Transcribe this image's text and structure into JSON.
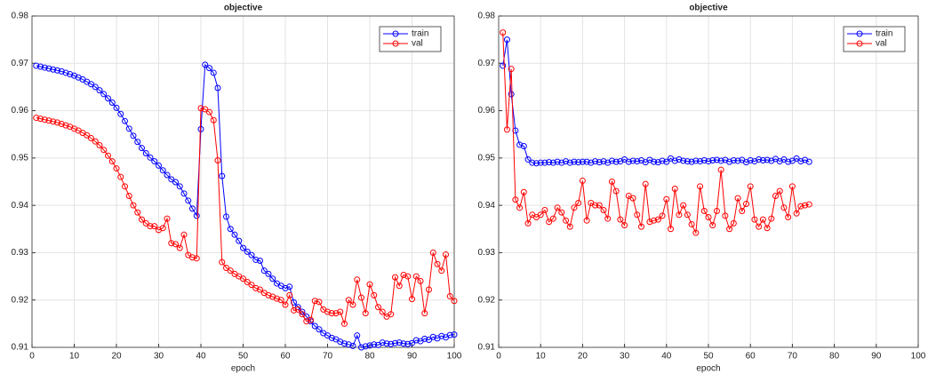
{
  "chart_data": [
    {
      "type": "line",
      "title": "objective",
      "xlabel": "epoch",
      "x": [
        1,
        2,
        3,
        4,
        5,
        6,
        7,
        8,
        9,
        10,
        11,
        12,
        13,
        14,
        15,
        16,
        17,
        18,
        19,
        20,
        21,
        22,
        23,
        24,
        25,
        26,
        27,
        28,
        29,
        30,
        31,
        32,
        33,
        34,
        35,
        36,
        37,
        38,
        39,
        40,
        41,
        42,
        43,
        44,
        45,
        46,
        47,
        48,
        49,
        50,
        51,
        52,
        53,
        54,
        55,
        56,
        57,
        58,
        59,
        60,
        61,
        62,
        63,
        64,
        65,
        66,
        67,
        68,
        69,
        70,
        71,
        72,
        73,
        74,
        75,
        76,
        77,
        78,
        79,
        80,
        81,
        82,
        83,
        84,
        85,
        86,
        87,
        88,
        89,
        90,
        91,
        92,
        93,
        94,
        95,
        96,
        97,
        98,
        99,
        100
      ],
      "series": [
        {
          "name": "train",
          "color": "#0000ff",
          "values": [
            0.9695,
            0.9693,
            0.9691,
            0.9689,
            0.9687,
            0.9685,
            0.9683,
            0.968,
            0.9677,
            0.9674,
            0.967,
            0.9666,
            0.9661,
            0.9656,
            0.965,
            0.9643,
            0.9635,
            0.9626,
            0.9617,
            0.9606,
            0.9593,
            0.9578,
            0.9562,
            0.9547,
            0.9534,
            0.9521,
            0.951,
            0.9501,
            0.9493,
            0.9484,
            0.9474,
            0.9464,
            0.9455,
            0.9449,
            0.944,
            0.9425,
            0.941,
            0.9393,
            0.9378,
            0.9561,
            0.9697,
            0.969,
            0.968,
            0.9648,
            0.9462,
            0.9376,
            0.935,
            0.9338,
            0.9325,
            0.931,
            0.9302,
            0.9295,
            0.9285,
            0.9283,
            0.9262,
            0.9255,
            0.9245,
            0.9235,
            0.923,
            0.9225,
            0.9228,
            0.9195,
            0.9185,
            0.9175,
            0.9165,
            0.9155,
            0.9145,
            0.9138,
            0.913,
            0.9125,
            0.912,
            0.9117,
            0.9112,
            0.9108,
            0.9106,
            0.9103,
            0.9125,
            0.91,
            0.9102,
            0.9104,
            0.9106,
            0.9105,
            0.911,
            0.9108,
            0.9107,
            0.9109,
            0.911,
            0.9108,
            0.9107,
            0.9109,
            0.9115,
            0.9113,
            0.9118,
            0.9116,
            0.9122,
            0.9119,
            0.9124,
            0.9121,
            0.9126,
            0.9127
          ]
        },
        {
          "name": "val",
          "color": "#ff0000",
          "values": [
            0.9585,
            0.9583,
            0.9581,
            0.9579,
            0.9577,
            0.9575,
            0.9572,
            0.9569,
            0.9566,
            0.9562,
            0.9558,
            0.9553,
            0.9548,
            0.9542,
            0.9535,
            0.9527,
            0.9517,
            0.9505,
            0.9493,
            0.9478,
            0.946,
            0.944,
            0.942,
            0.94,
            0.9385,
            0.937,
            0.9362,
            0.9356,
            0.9356,
            0.9348,
            0.9352,
            0.9372,
            0.932,
            0.9318,
            0.931,
            0.9338,
            0.9295,
            0.929,
            0.9288,
            0.9605,
            0.9603,
            0.9597,
            0.958,
            0.9495,
            0.928,
            0.9268,
            0.9262,
            0.9255,
            0.925,
            0.9245,
            0.9238,
            0.9232,
            0.9225,
            0.9222,
            0.9215,
            0.921,
            0.9207,
            0.9203,
            0.92,
            0.919,
            0.921,
            0.9178,
            0.918,
            0.917,
            0.9155,
            0.9158,
            0.9198,
            0.9196,
            0.918,
            0.9175,
            0.9172,
            0.9172,
            0.9175,
            0.915,
            0.92,
            0.919,
            0.9243,
            0.9205,
            0.9172,
            0.9233,
            0.921,
            0.9185,
            0.9175,
            0.9165,
            0.917,
            0.9248,
            0.923,
            0.9253,
            0.925,
            0.9202,
            0.925,
            0.924,
            0.9172,
            0.9222,
            0.93,
            0.9276,
            0.9262,
            0.9296,
            0.9208,
            0.9198
          ]
        }
      ],
      "xlim": [
        0,
        100
      ],
      "xticks": [
        0,
        10,
        20,
        30,
        40,
        50,
        60,
        70,
        80,
        90,
        100
      ],
      "ylim": [
        0.91,
        0.98
      ],
      "yticks": [
        0.91,
        0.92,
        0.93,
        0.94,
        0.95,
        0.96,
        0.97,
        0.98
      ],
      "grid": true,
      "legend": "northeast"
    },
    {
      "type": "line",
      "title": "objective",
      "xlabel": "epoch",
      "x": [
        1,
        2,
        3,
        4,
        5,
        6,
        7,
        8,
        9,
        10,
        11,
        12,
        13,
        14,
        15,
        16,
        17,
        18,
        19,
        20,
        21,
        22,
        23,
        24,
        25,
        26,
        27,
        28,
        29,
        30,
        31,
        32,
        33,
        34,
        35,
        36,
        37,
        38,
        39,
        40,
        41,
        42,
        43,
        44,
        45,
        46,
        47,
        48,
        49,
        50,
        51,
        52,
        53,
        54,
        55,
        56,
        57,
        58,
        59,
        60,
        61,
        62,
        63,
        64,
        65,
        66,
        67,
        68,
        69,
        70,
        71,
        72,
        73,
        74
      ],
      "series": [
        {
          "name": "train",
          "color": "#0000ff",
          "values": [
            0.9695,
            0.975,
            0.9635,
            0.9558,
            0.9528,
            0.9525,
            0.9497,
            0.949,
            0.9489,
            0.949,
            0.949,
            0.9491,
            0.949,
            0.9492,
            0.949,
            0.9493,
            0.949,
            0.9492,
            0.9491,
            0.9492,
            0.9492,
            0.949,
            0.9493,
            0.9491,
            0.9493,
            0.949,
            0.9494,
            0.9492,
            0.9493,
            0.9497,
            0.9492,
            0.9494,
            0.9493,
            0.9495,
            0.9491,
            0.9496,
            0.9492,
            0.9491,
            0.9494,
            0.9492,
            0.9499,
            0.9494,
            0.9497,
            0.9494,
            0.9493,
            0.9492,
            0.9494,
            0.9493,
            0.9495,
            0.9493,
            0.9495,
            0.9496,
            0.9494,
            0.9496,
            0.9492,
            0.9495,
            0.9494,
            0.9496,
            0.9491,
            0.9495,
            0.9493,
            0.9497,
            0.9495,
            0.9496,
            0.9494,
            0.9498,
            0.9493,
            0.9497,
            0.9492,
            0.9494,
            0.9499,
            0.9493,
            0.9496,
            0.9492
          ]
        },
        {
          "name": "val",
          "color": "#ff0000",
          "values": [
            0.9765,
            0.956,
            0.9688,
            0.9412,
            0.9395,
            0.9428,
            0.9362,
            0.938,
            0.9375,
            0.938,
            0.939,
            0.9365,
            0.9372,
            0.9395,
            0.9385,
            0.9368,
            0.9355,
            0.9395,
            0.9405,
            0.9452,
            0.9368,
            0.9405,
            0.94,
            0.94,
            0.939,
            0.9372,
            0.945,
            0.943,
            0.937,
            0.9358,
            0.942,
            0.9415,
            0.938,
            0.9355,
            0.9445,
            0.9365,
            0.9368,
            0.937,
            0.9378,
            0.9413,
            0.935,
            0.9435,
            0.938,
            0.94,
            0.938,
            0.936,
            0.9342,
            0.944,
            0.9388,
            0.9375,
            0.9358,
            0.9388,
            0.9475,
            0.9378,
            0.935,
            0.9362,
            0.9415,
            0.9388,
            0.9403,
            0.944,
            0.937,
            0.9355,
            0.937,
            0.9352,
            0.9372,
            0.942,
            0.943,
            0.9395,
            0.9375,
            0.944,
            0.9383,
            0.9398,
            0.94,
            0.9402
          ]
        }
      ],
      "xlim": [
        0,
        100
      ],
      "xticks": [
        0,
        10,
        20,
        30,
        40,
        50,
        60,
        70,
        80,
        90,
        100
      ],
      "ylim": [
        0.91,
        0.98
      ],
      "yticks": [
        0.91,
        0.92,
        0.93,
        0.94,
        0.95,
        0.96,
        0.97,
        0.98
      ],
      "grid": true,
      "legend": "northeast"
    }
  ]
}
